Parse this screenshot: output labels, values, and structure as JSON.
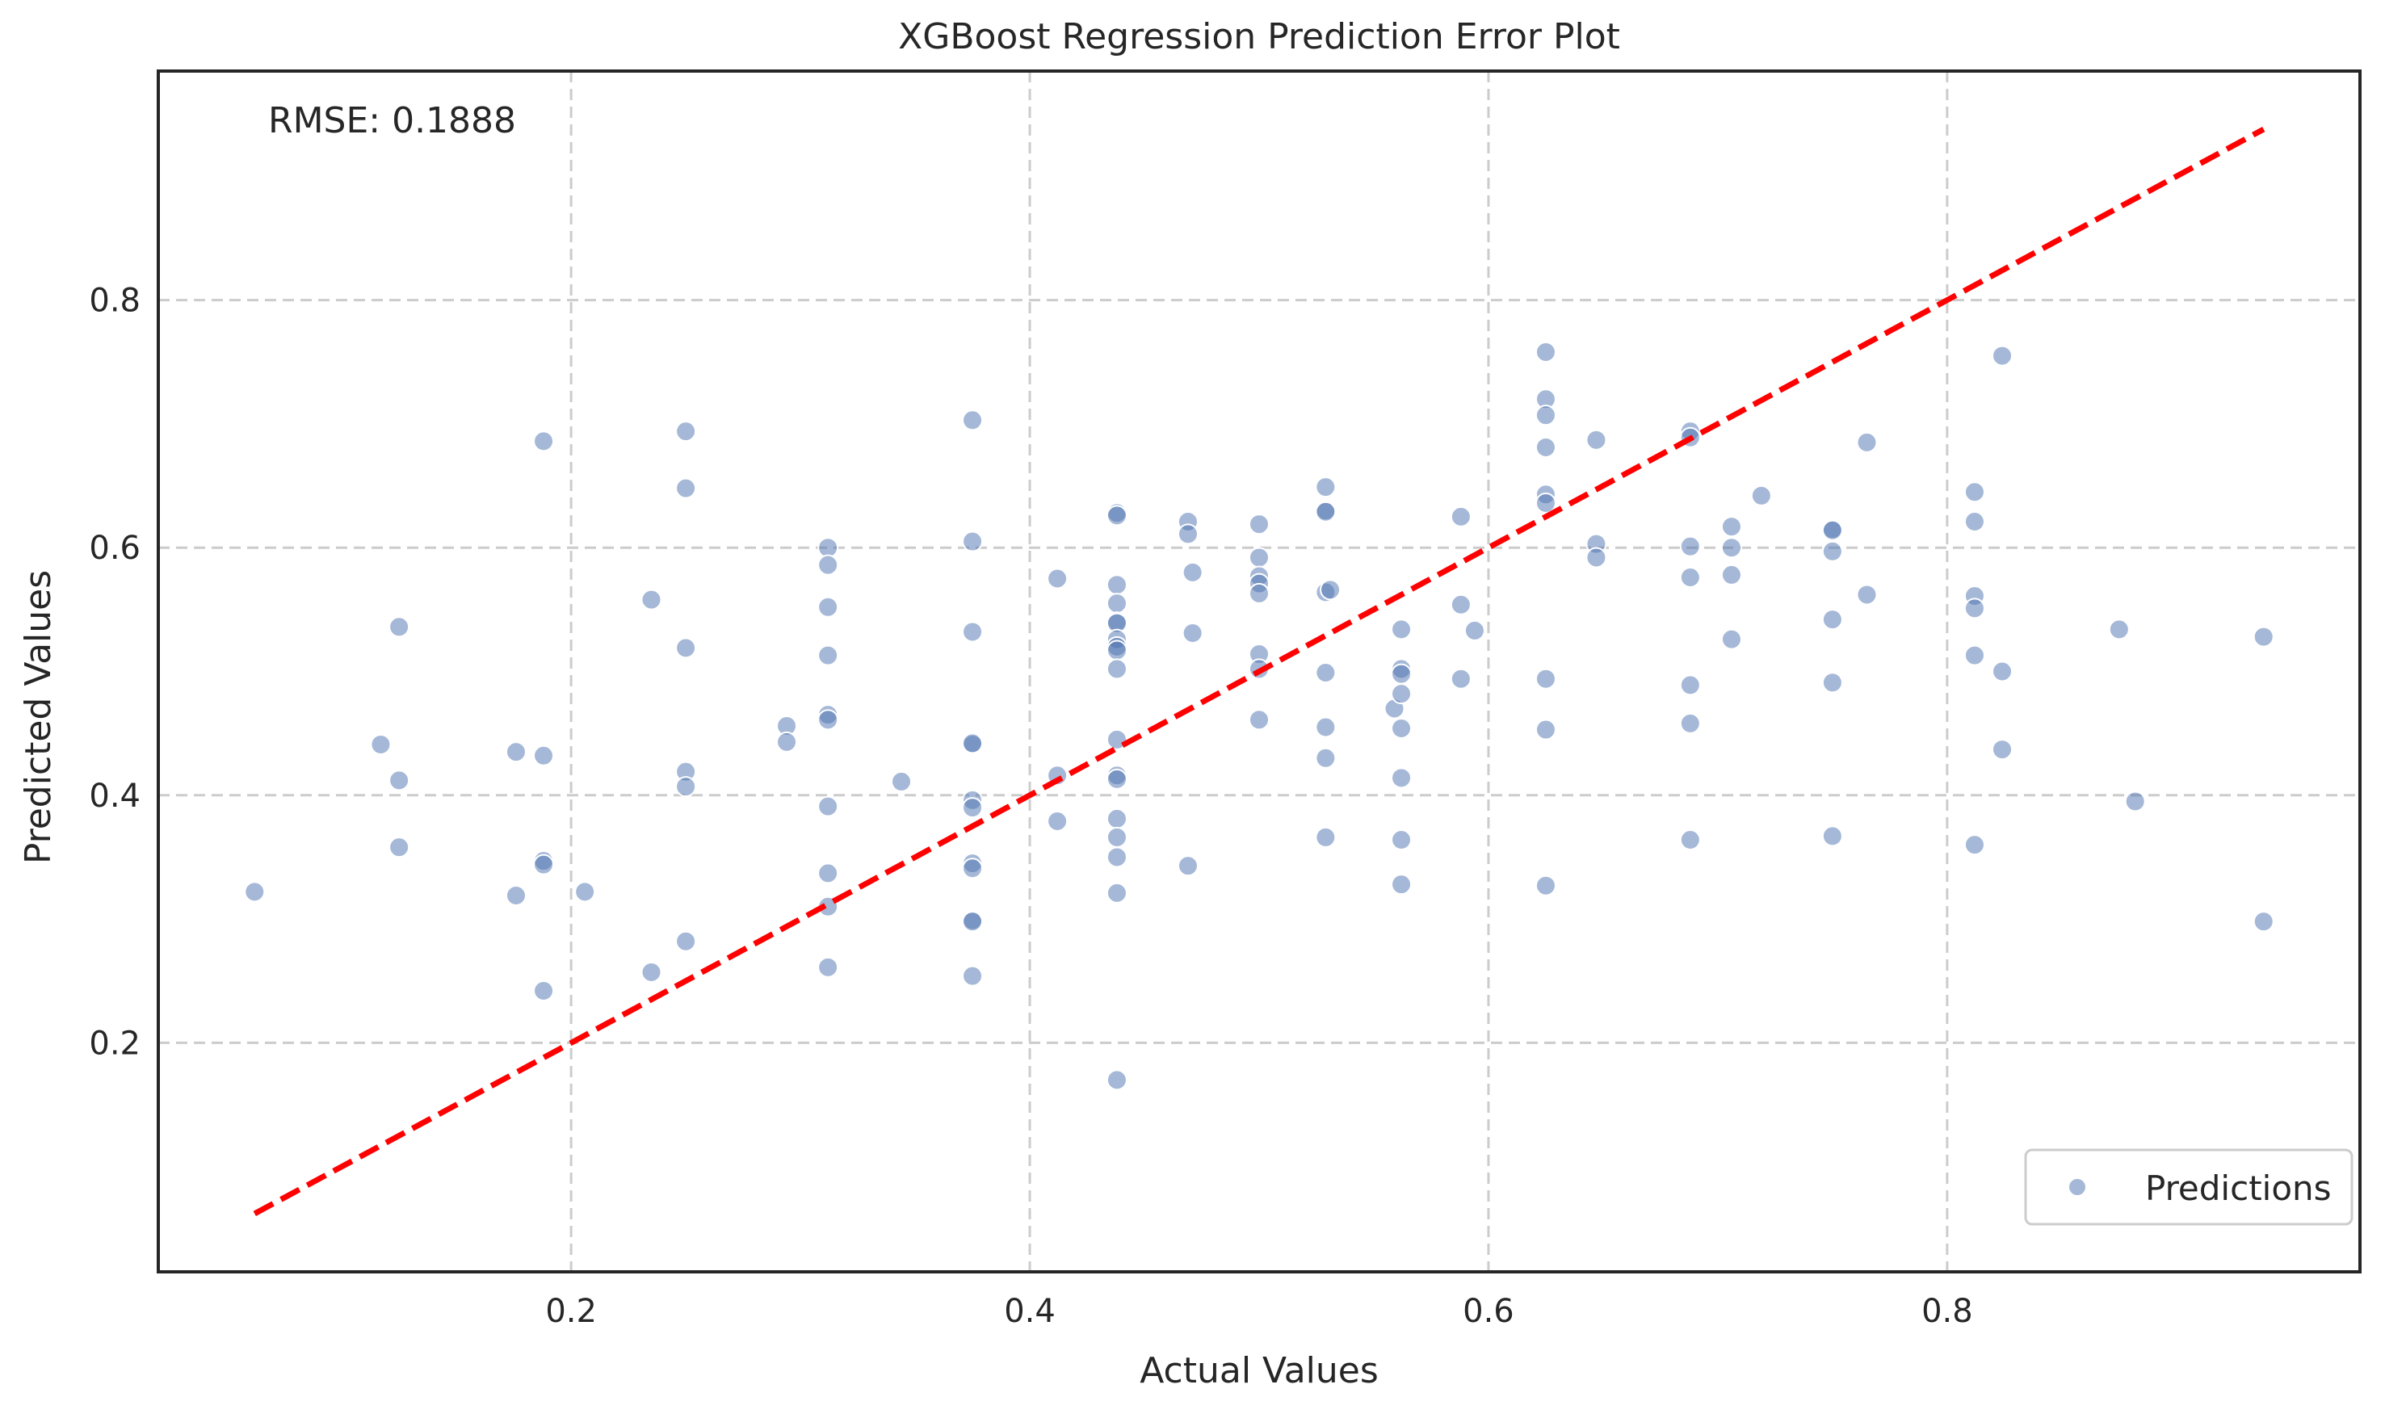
{
  "chart_data": {
    "type": "scatter",
    "title": "XGBoost Regression Prediction Error Plot",
    "xlabel": "Actual Values",
    "ylabel": "Predicted Values",
    "xlim": [
      0.02,
      0.98
    ],
    "ylim": [
      0.015,
      0.985
    ],
    "x_ticks": [
      0.2,
      0.4,
      0.6,
      0.8
    ],
    "y_ticks": [
      0.2,
      0.4,
      0.6,
      0.8
    ],
    "x_tick_labels": [
      "0.2",
      "0.4",
      "0.6",
      "0.8"
    ],
    "y_tick_labels": [
      "0.2",
      "0.4",
      "0.6",
      "0.8"
    ],
    "grid": true,
    "legend_position": "bottom-right",
    "annotation": "RMSE: 0.1888",
    "colors": {
      "points": "#4C72B0",
      "reference_line": "#ff0000",
      "grid": "#cccccc",
      "frame": "#262626"
    },
    "series": [
      {
        "name": "Predictions",
        "points": [
          [
            0.062,
            0.322
          ],
          [
            0.117,
            0.441
          ],
          [
            0.125,
            0.536
          ],
          [
            0.125,
            0.412
          ],
          [
            0.125,
            0.358
          ],
          [
            0.176,
            0.435
          ],
          [
            0.176,
            0.319
          ],
          [
            0.188,
            0.686
          ],
          [
            0.188,
            0.432
          ],
          [
            0.188,
            0.347
          ],
          [
            0.188,
            0.344
          ],
          [
            0.188,
            0.242
          ],
          [
            0.206,
            0.322
          ],
          [
            0.235,
            0.558
          ],
          [
            0.235,
            0.257
          ],
          [
            0.25,
            0.694
          ],
          [
            0.25,
            0.648
          ],
          [
            0.25,
            0.519
          ],
          [
            0.25,
            0.419
          ],
          [
            0.25,
            0.407
          ],
          [
            0.25,
            0.282
          ],
          [
            0.294,
            0.456
          ],
          [
            0.294,
            0.443
          ],
          [
            0.312,
            0.6
          ],
          [
            0.312,
            0.586
          ],
          [
            0.312,
            0.552
          ],
          [
            0.312,
            0.513
          ],
          [
            0.312,
            0.465
          ],
          [
            0.312,
            0.461
          ],
          [
            0.312,
            0.391
          ],
          [
            0.312,
            0.337
          ],
          [
            0.312,
            0.31
          ],
          [
            0.312,
            0.261
          ],
          [
            0.344,
            0.411
          ],
          [
            0.375,
            0.703
          ],
          [
            0.375,
            0.605
          ],
          [
            0.375,
            0.532
          ],
          [
            0.375,
            0.441
          ],
          [
            0.375,
            0.442
          ],
          [
            0.375,
            0.396
          ],
          [
            0.375,
            0.39
          ],
          [
            0.375,
            0.345
          ],
          [
            0.375,
            0.341
          ],
          [
            0.375,
            0.299
          ],
          [
            0.375,
            0.298
          ],
          [
            0.375,
            0.254
          ],
          [
            0.412,
            0.575
          ],
          [
            0.412,
            0.416
          ],
          [
            0.412,
            0.379
          ],
          [
            0.438,
            0.628
          ],
          [
            0.438,
            0.626
          ],
          [
            0.438,
            0.57
          ],
          [
            0.438,
            0.555
          ],
          [
            0.438,
            0.54
          ],
          [
            0.438,
            0.539
          ],
          [
            0.438,
            0.526
          ],
          [
            0.438,
            0.52
          ],
          [
            0.438,
            0.517
          ],
          [
            0.438,
            0.502
          ],
          [
            0.438,
            0.445
          ],
          [
            0.438,
            0.416
          ],
          [
            0.438,
            0.413
          ],
          [
            0.438,
            0.381
          ],
          [
            0.438,
            0.366
          ],
          [
            0.438,
            0.35
          ],
          [
            0.438,
            0.321
          ],
          [
            0.438,
            0.17
          ],
          [
            0.469,
            0.621
          ],
          [
            0.469,
            0.611
          ],
          [
            0.471,
            0.58
          ],
          [
            0.471,
            0.531
          ],
          [
            0.469,
            0.343
          ],
          [
            0.5,
            0.619
          ],
          [
            0.5,
            0.592
          ],
          [
            0.5,
            0.577
          ],
          [
            0.5,
            0.571
          ],
          [
            0.5,
            0.563
          ],
          [
            0.5,
            0.514
          ],
          [
            0.5,
            0.502
          ],
          [
            0.5,
            0.461
          ],
          [
            0.529,
            0.649
          ],
          [
            0.529,
            0.63
          ],
          [
            0.529,
            0.629
          ],
          [
            0.529,
            0.564
          ],
          [
            0.531,
            0.566
          ],
          [
            0.529,
            0.499
          ],
          [
            0.529,
            0.455
          ],
          [
            0.529,
            0.43
          ],
          [
            0.529,
            0.366
          ],
          [
            0.559,
            0.47
          ],
          [
            0.562,
            0.534
          ],
          [
            0.562,
            0.502
          ],
          [
            0.562,
            0.498
          ],
          [
            0.562,
            0.482
          ],
          [
            0.562,
            0.454
          ],
          [
            0.562,
            0.414
          ],
          [
            0.562,
            0.364
          ],
          [
            0.562,
            0.328
          ],
          [
            0.588,
            0.625
          ],
          [
            0.588,
            0.554
          ],
          [
            0.588,
            0.494
          ],
          [
            0.594,
            0.533
          ],
          [
            0.625,
            0.758
          ],
          [
            0.625,
            0.72
          ],
          [
            0.625,
            0.707
          ],
          [
            0.625,
            0.681
          ],
          [
            0.625,
            0.643
          ],
          [
            0.625,
            0.636
          ],
          [
            0.625,
            0.494
          ],
          [
            0.625,
            0.453
          ],
          [
            0.625,
            0.327
          ],
          [
            0.647,
            0.687
          ],
          [
            0.647,
            0.603
          ],
          [
            0.647,
            0.592
          ],
          [
            0.688,
            0.694
          ],
          [
            0.688,
            0.689
          ],
          [
            0.688,
            0.601
          ],
          [
            0.688,
            0.576
          ],
          [
            0.688,
            0.489
          ],
          [
            0.688,
            0.458
          ],
          [
            0.688,
            0.364
          ],
          [
            0.706,
            0.617
          ],
          [
            0.706,
            0.6
          ],
          [
            0.706,
            0.578
          ],
          [
            0.706,
            0.526
          ],
          [
            0.719,
            0.642
          ],
          [
            0.75,
            0.615
          ],
          [
            0.75,
            0.614
          ],
          [
            0.75,
            0.597
          ],
          [
            0.75,
            0.542
          ],
          [
            0.75,
            0.491
          ],
          [
            0.75,
            0.367
          ],
          [
            0.765,
            0.685
          ],
          [
            0.765,
            0.562
          ],
          [
            0.812,
            0.645
          ],
          [
            0.812,
            0.621
          ],
          [
            0.812,
            0.561
          ],
          [
            0.812,
            0.551
          ],
          [
            0.812,
            0.513
          ],
          [
            0.812,
            0.36
          ],
          [
            0.824,
            0.755
          ],
          [
            0.824,
            0.5
          ],
          [
            0.824,
            0.437
          ],
          [
            0.875,
            0.534
          ],
          [
            0.882,
            0.395
          ],
          [
            0.938,
            0.528
          ],
          [
            0.938,
            0.298
          ]
        ]
      }
    ],
    "reference_line": {
      "style": "dashed",
      "from": [
        0.062,
        0.062
      ],
      "to": [
        0.938,
        0.938
      ]
    }
  }
}
